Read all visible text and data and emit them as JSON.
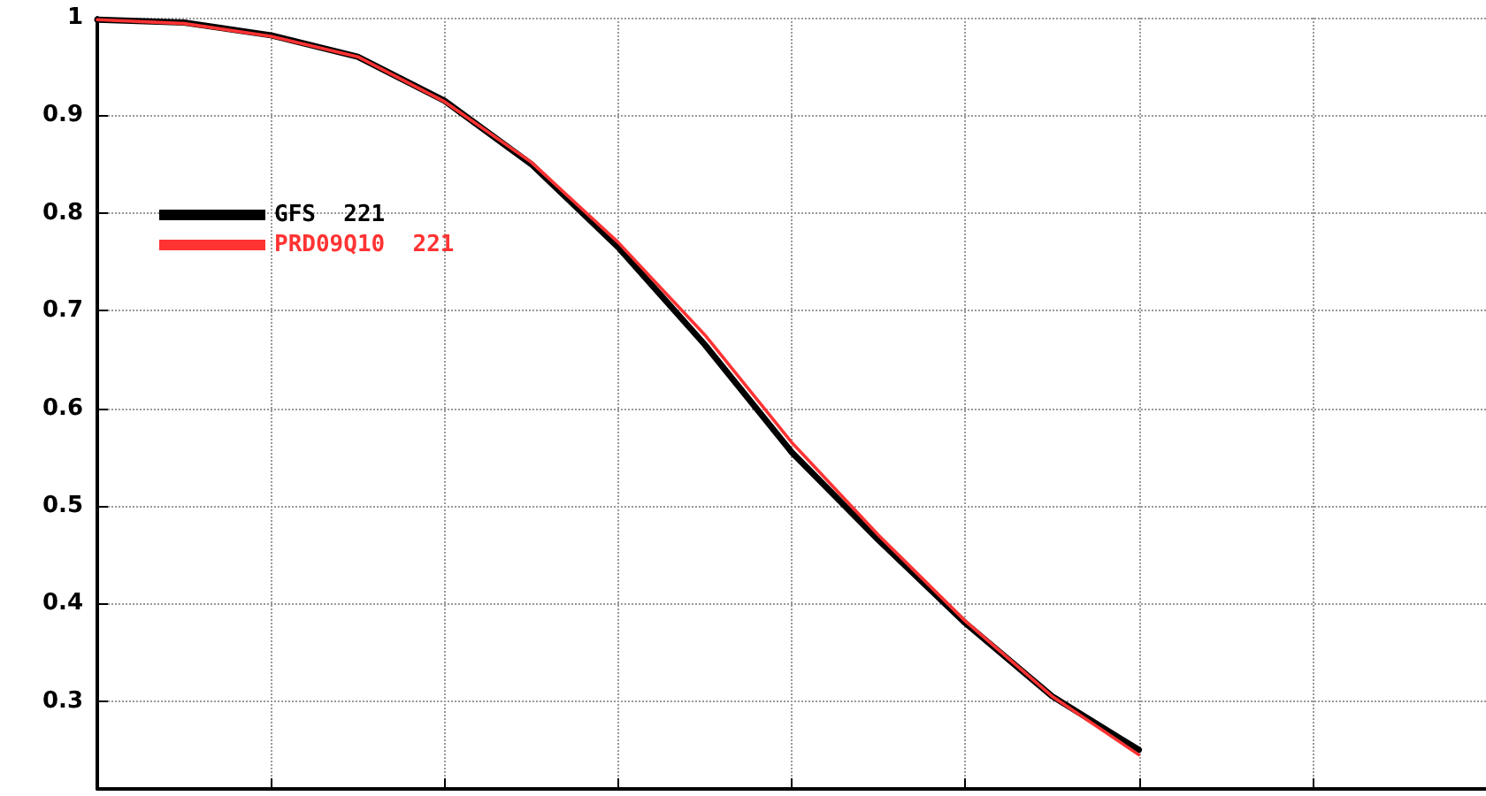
{
  "chart_data": {
    "type": "line",
    "categories": [
      null,
      null,
      null,
      null,
      null,
      null,
      null,
      null,
      null,
      null,
      null,
      null,
      null,
      null,
      null,
      null,
      null
    ],
    "series": [
      {
        "name": "GFS  221",
        "color": "#000000",
        "values": [
          0.998,
          0.995,
          0.982,
          0.96,
          0.915,
          0.85,
          0.765,
          0.665,
          0.555,
          0.465,
          0.38,
          0.305,
          0.25,
          null,
          null,
          null,
          null
        ]
      },
      {
        "name": "PRD09Q10  221",
        "color": "#ff3333",
        "values": [
          0.998,
          0.994,
          0.981,
          0.96,
          0.914,
          0.852,
          0.77,
          0.675,
          0.565,
          0.47,
          0.382,
          0.305,
          0.245,
          null,
          null,
          null,
          null
        ]
      }
    ],
    "ylim": [
      0.21,
      1
    ],
    "yticks": [
      0.3,
      0.4,
      0.5,
      0.6,
      0.7,
      0.8,
      0.9,
      1
    ],
    "grid": true,
    "legend": "top left",
    "marker": "none",
    "line_style": "solid",
    "tick_labels": "y"
  }
}
